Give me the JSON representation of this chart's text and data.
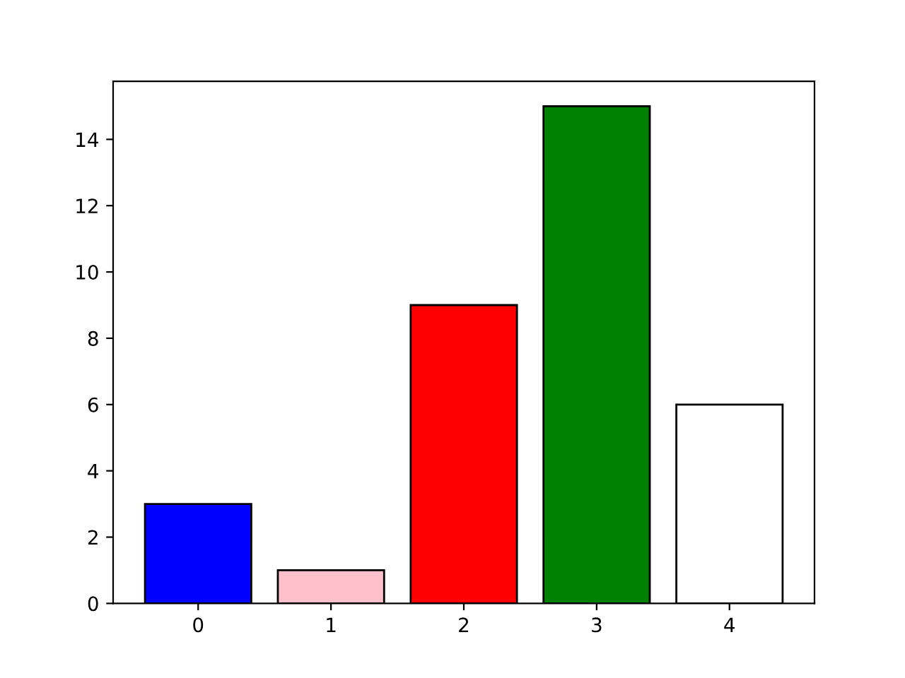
{
  "chart_data": {
    "type": "bar",
    "categories": [
      "0",
      "1",
      "2",
      "3",
      "4"
    ],
    "values": [
      3,
      1,
      9,
      15,
      6
    ],
    "colors": [
      "#0000ff",
      "#ffc0cb",
      "#ff0000",
      "#008000",
      "#ffffff"
    ],
    "ylim": [
      0,
      15.75
    ],
    "yticks": [
      0,
      2,
      4,
      6,
      8,
      10,
      12,
      14
    ],
    "grid": false
  }
}
